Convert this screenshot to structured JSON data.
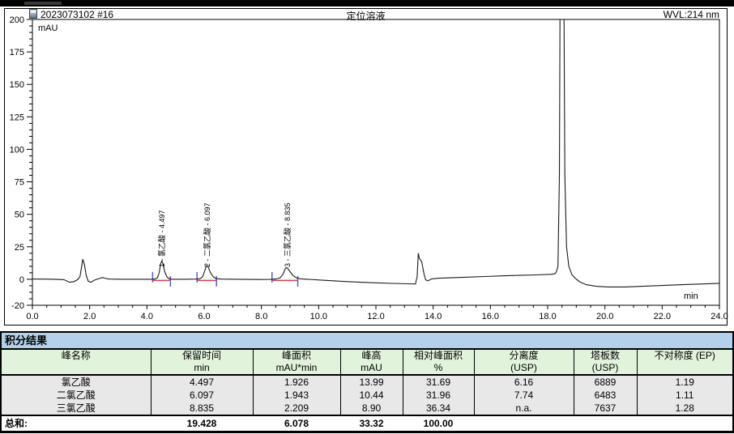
{
  "colors": {
    "trace": "#1a1a1a",
    "marker": "#5a5ad0",
    "baseline": "#cc4444",
    "table_title_bg": "#b3d1e8",
    "table_header_bg": "#e2f3dc",
    "row_bg": "#e8e8e8"
  },
  "chart": {
    "sample_id": "2023073102 #16",
    "title": "定位溶液",
    "wavelength": "WVL:214 nm"
  },
  "chart_data": {
    "type": "line",
    "title": "定位溶液",
    "sample_id": "2023073102 #16",
    "detector": "WVL:214 nm",
    "xlabel": "min",
    "ylabel": "mAU",
    "xlim": [
      0,
      24
    ],
    "ylim": [
      -20,
      200
    ],
    "x_major_ticks": [
      0,
      2,
      4,
      6,
      8,
      10,
      12,
      14,
      16,
      18,
      20,
      22,
      24
    ],
    "y_major_ticks": [
      -20,
      0,
      25,
      50,
      75,
      100,
      125,
      150,
      175,
      200
    ],
    "grid": false,
    "peaks": [
      {
        "number": 1,
        "name": "氯乙酸",
        "retention": 4.497,
        "height_mau": 13.99
      },
      {
        "number": 2,
        "name": "二氯乙酸",
        "retention": 6.097,
        "height_mau": 10.44
      },
      {
        "number": 3,
        "name": "三氯乙酸",
        "retention": 8.835,
        "height_mau": 8.9
      }
    ],
    "peak_labels": [
      {
        "t": 4.5,
        "text": "1 - 氯乙酸 - 4.497"
      },
      {
        "t": 6.08,
        "text": "2 - 二氯乙酸 - 6.097"
      },
      {
        "t": 8.88,
        "text": "3 - 三氯乙酸 - 8.835"
      }
    ],
    "integration_marks": [
      {
        "start": 4.2,
        "end": 4.82
      },
      {
        "start": 5.75,
        "end": 6.43
      },
      {
        "start": 8.37,
        "end": 9.27
      }
    ],
    "trace": [
      [
        0,
        0.2
      ],
      [
        0.4,
        0.1
      ],
      [
        0.8,
        0
      ],
      [
        1.1,
        -0.3
      ],
      [
        1.3,
        -2.3
      ],
      [
        1.45,
        -1.8
      ],
      [
        1.58,
        -0.3
      ],
      [
        1.66,
        2
      ],
      [
        1.72,
        10
      ],
      [
        1.76,
        15.5
      ],
      [
        1.82,
        11
      ],
      [
        1.88,
        3
      ],
      [
        1.95,
        -1.5
      ],
      [
        2.05,
        -2.3
      ],
      [
        2.15,
        -0.8
      ],
      [
        2.25,
        0
      ],
      [
        2.35,
        0.6
      ],
      [
        2.45,
        1.4
      ],
      [
        2.55,
        0.6
      ],
      [
        2.7,
        0.1
      ],
      [
        3.2,
        0
      ],
      [
        3.8,
        0
      ],
      [
        4.15,
        0
      ],
      [
        4.28,
        0.2
      ],
      [
        4.36,
        1
      ],
      [
        4.43,
        5
      ],
      [
        4.48,
        12
      ],
      [
        4.52,
        14
      ],
      [
        4.56,
        12
      ],
      [
        4.62,
        6
      ],
      [
        4.7,
        1.8
      ],
      [
        4.78,
        0.4
      ],
      [
        4.9,
        0
      ],
      [
        5.3,
        0
      ],
      [
        5.7,
        0.1
      ],
      [
        5.85,
        0.4
      ],
      [
        5.95,
        2
      ],
      [
        6.02,
        6.5
      ],
      [
        6.08,
        10.4
      ],
      [
        6.14,
        9.5
      ],
      [
        6.22,
        5
      ],
      [
        6.32,
        1.8
      ],
      [
        6.42,
        0.5
      ],
      [
        6.6,
        0.1
      ],
      [
        7.2,
        0
      ],
      [
        7.9,
        -0.2
      ],
      [
        8.3,
        -0.1
      ],
      [
        8.5,
        0.2
      ],
      [
        8.65,
        1
      ],
      [
        8.76,
        4
      ],
      [
        8.84,
        8.5
      ],
      [
        8.9,
        8.9
      ],
      [
        8.98,
        6.5
      ],
      [
        9.1,
        3
      ],
      [
        9.22,
        1.2
      ],
      [
        9.35,
        0.4
      ],
      [
        9.6,
        0
      ],
      [
        10.2,
        -0.8
      ],
      [
        11,
        -1.8
      ],
      [
        11.8,
        -2.6
      ],
      [
        12.6,
        -3.2
      ],
      [
        13.1,
        -3.5
      ],
      [
        13.38,
        -3.6
      ],
      [
        13.44,
        2
      ],
      [
        13.48,
        20
      ],
      [
        13.52,
        16
      ],
      [
        13.56,
        14.8
      ],
      [
        13.6,
        13.5
      ],
      [
        13.68,
        4
      ],
      [
        13.74,
        -0.5
      ],
      [
        13.82,
        -1.2
      ],
      [
        13.95,
        0.3
      ],
      [
        14.2,
        0.8
      ],
      [
        14.6,
        1.1
      ],
      [
        15.2,
        1.6
      ],
      [
        15.8,
        2.1
      ],
      [
        16.4,
        2.6
      ],
      [
        17,
        3
      ],
      [
        17.6,
        3.4
      ],
      [
        18.1,
        3.8
      ],
      [
        18.25,
        4.2
      ],
      [
        18.3,
        5.5
      ],
      [
        18.36,
        10
      ],
      [
        18.41,
        80
      ],
      [
        18.44,
        250
      ],
      [
        18.56,
        250
      ],
      [
        18.6,
        80
      ],
      [
        18.66,
        25
      ],
      [
        18.74,
        10
      ],
      [
        18.85,
        3.5
      ],
      [
        18.98,
        0.5
      ],
      [
        19.12,
        -2
      ],
      [
        19.35,
        -4.2
      ],
      [
        19.7,
        -5.4
      ],
      [
        20.1,
        -5.9
      ],
      [
        20.7,
        -5.9
      ],
      [
        21.3,
        -5.4
      ],
      [
        22,
        -4.8
      ],
      [
        22.7,
        -4.2
      ],
      [
        23.4,
        -3.6
      ],
      [
        24,
        -3.1
      ]
    ]
  },
  "table": {
    "title": "积分结果",
    "columns": [
      {
        "line1": "峰名称",
        "line2": ""
      },
      {
        "line1": "保留时间",
        "line2": "min"
      },
      {
        "line1": "峰面积",
        "line2": "mAU*min"
      },
      {
        "line1": "峰高",
        "line2": "mAU"
      },
      {
        "line1": "相对峰面积",
        "line2": "%"
      },
      {
        "line1": "分离度",
        "line2": "(USP)"
      },
      {
        "line1": "塔板数",
        "line2": "(USP)"
      },
      {
        "line1": "不对称度 (EP)",
        "line2": ""
      }
    ],
    "rows": [
      [
        "氯乙酸",
        "4.497",
        "1.926",
        "13.99",
        "31.69",
        "6.16",
        "6889",
        "1.19"
      ],
      [
        "二氯乙酸",
        "6.097",
        "1.943",
        "10.44",
        "31.96",
        "7.74",
        "6483",
        "1.11"
      ],
      [
        "三氯乙酸",
        "8.835",
        "2.209",
        "8.90",
        "36.34",
        "n.a.",
        "7637",
        "1.28"
      ]
    ],
    "total": {
      "label": "总和:",
      "values": [
        "19.428",
        "6.078",
        "33.32",
        "100.00"
      ]
    }
  }
}
